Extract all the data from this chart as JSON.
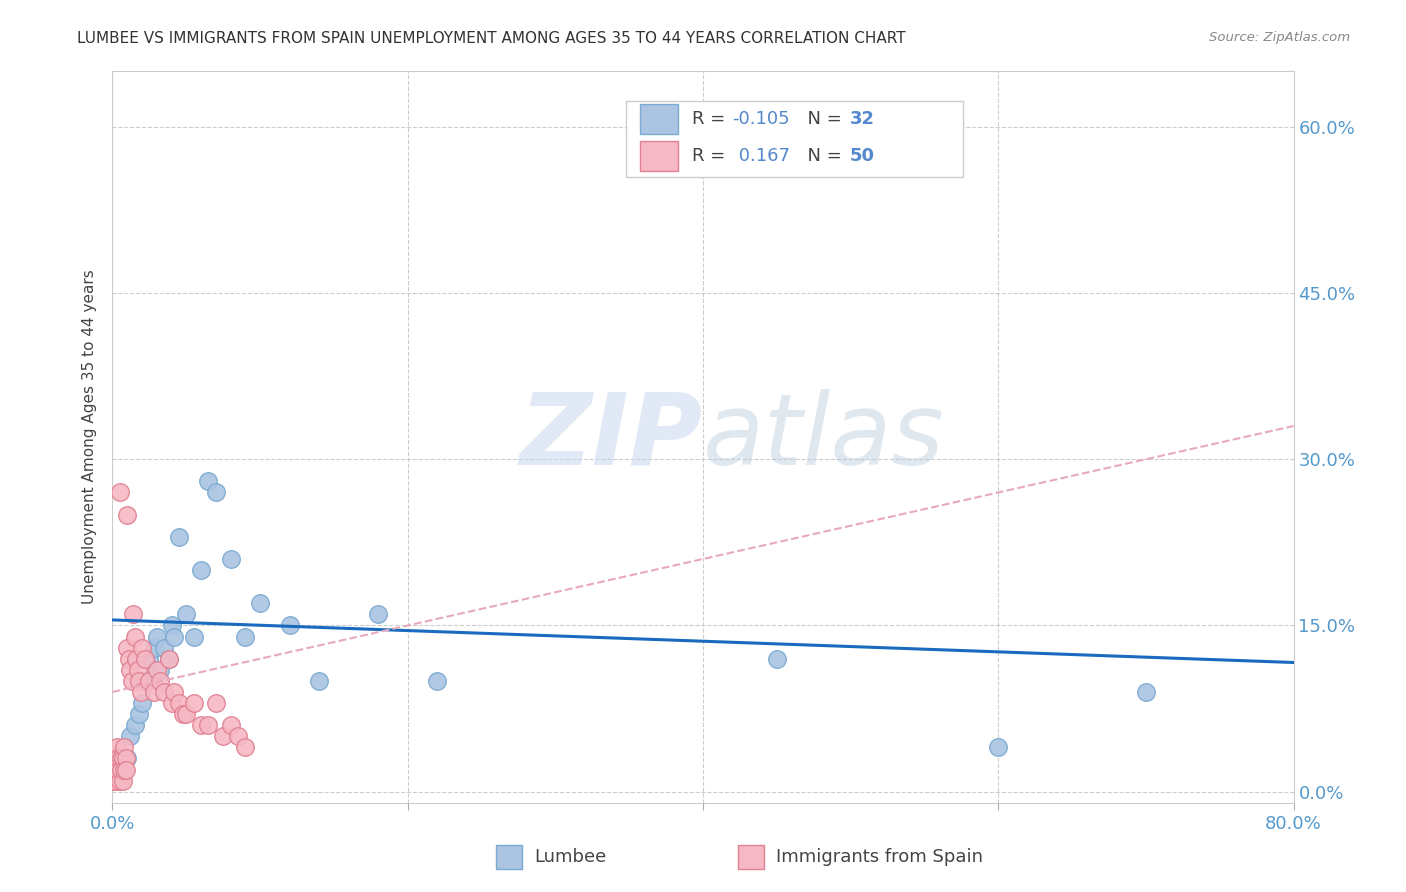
{
  "title": "LUMBEE VS IMMIGRANTS FROM SPAIN UNEMPLOYMENT AMONG AGES 35 TO 44 YEARS CORRELATION CHART",
  "source": "Source: ZipAtlas.com",
  "ylabel": "Unemployment Among Ages 35 to 44 years",
  "yticks": [
    "0.0%",
    "15.0%",
    "30.0%",
    "45.0%",
    "60.0%"
  ],
  "ytick_vals": [
    0.0,
    0.15,
    0.3,
    0.45,
    0.6
  ],
  "xlim": [
    0.0,
    0.8
  ],
  "ylim": [
    -0.01,
    0.65
  ],
  "lumbee_color": "#aac4e2",
  "spain_color": "#f5b8c4",
  "lumbee_edge": "#7aaad0",
  "spain_edge": "#e08090",
  "trend_lumbee_color": "#1a6bbf",
  "trend_spain_color": "#e8aabb",
  "lumbee_trend_b0": 0.155,
  "lumbee_trend_b1": -0.048,
  "spain_trend_b0": 0.09,
  "spain_trend_b1": 0.3,
  "lumbee_x": [
    0.005,
    0.008,
    0.01,
    0.012,
    0.015,
    0.018,
    0.02,
    0.022,
    0.025,
    0.028,
    0.03,
    0.032,
    0.035,
    0.038,
    0.04,
    0.042,
    0.045,
    0.05,
    0.055,
    0.06,
    0.065,
    0.07,
    0.08,
    0.09,
    0.1,
    0.12,
    0.14,
    0.18,
    0.22,
    0.45,
    0.6,
    0.7
  ],
  "lumbee_y": [
    0.01,
    0.02,
    0.03,
    0.05,
    0.06,
    0.07,
    0.08,
    0.1,
    0.12,
    0.13,
    0.14,
    0.11,
    0.13,
    0.12,
    0.15,
    0.14,
    0.23,
    0.16,
    0.14,
    0.2,
    0.28,
    0.27,
    0.21,
    0.14,
    0.17,
    0.15,
    0.1,
    0.16,
    0.1,
    0.12,
    0.04,
    0.09
  ],
  "spain_x": [
    0.001,
    0.001,
    0.002,
    0.002,
    0.003,
    0.003,
    0.004,
    0.004,
    0.005,
    0.005,
    0.006,
    0.006,
    0.007,
    0.007,
    0.008,
    0.008,
    0.009,
    0.009,
    0.01,
    0.01,
    0.011,
    0.012,
    0.013,
    0.014,
    0.015,
    0.016,
    0.017,
    0.018,
    0.019,
    0.02,
    0.022,
    0.025,
    0.028,
    0.03,
    0.032,
    0.035,
    0.038,
    0.04,
    0.042,
    0.045,
    0.048,
    0.05,
    0.055,
    0.06,
    0.065,
    0.07,
    0.075,
    0.08,
    0.085,
    0.09
  ],
  "spain_y": [
    0.01,
    0.02,
    0.01,
    0.03,
    0.02,
    0.04,
    0.02,
    0.03,
    0.01,
    0.27,
    0.03,
    0.02,
    0.01,
    0.03,
    0.02,
    0.04,
    0.03,
    0.02,
    0.25,
    0.13,
    0.12,
    0.11,
    0.1,
    0.16,
    0.14,
    0.12,
    0.11,
    0.1,
    0.09,
    0.13,
    0.12,
    0.1,
    0.09,
    0.11,
    0.1,
    0.09,
    0.12,
    0.08,
    0.09,
    0.08,
    0.07,
    0.07,
    0.08,
    0.06,
    0.06,
    0.08,
    0.05,
    0.06,
    0.05,
    0.04
  ]
}
